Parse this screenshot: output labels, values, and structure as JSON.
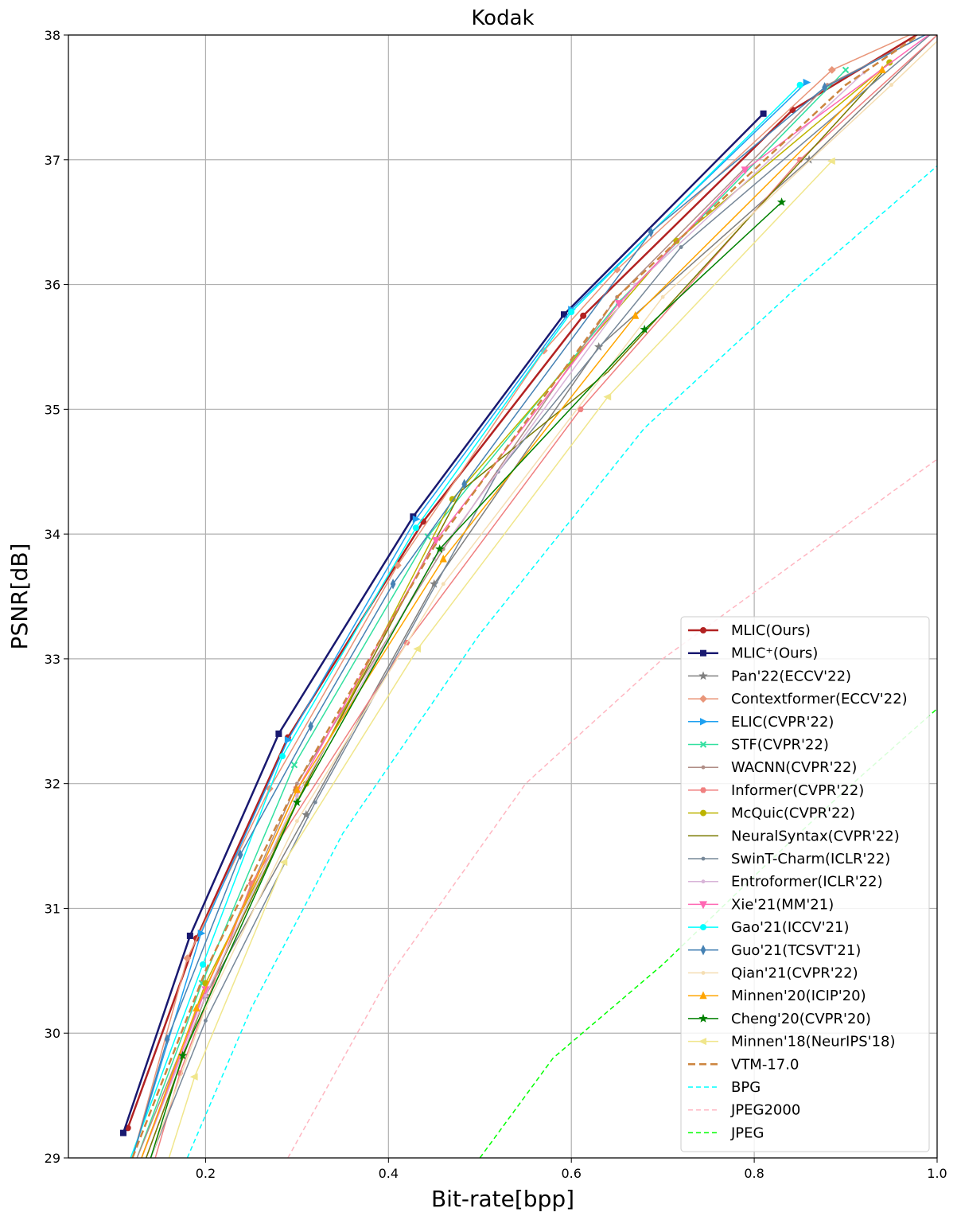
{
  "chart_data": {
    "type": "line",
    "title": "Kodak",
    "xlabel": "Bit-rate[bpp]",
    "ylabel": "PSNR[dB]",
    "xlim": [
      0.05,
      1.0
    ],
    "ylim": [
      29,
      38
    ],
    "xticks": [
      0.2,
      0.4,
      0.6,
      0.8,
      1.0
    ],
    "xtick_labels": [
      "0.2",
      "0.4",
      "0.6",
      "0.8",
      "1.0"
    ],
    "yticks": [
      29,
      30,
      31,
      32,
      33,
      34,
      35,
      36,
      37,
      38
    ],
    "ytick_labels": [
      "29",
      "30",
      "31",
      "32",
      "33",
      "34",
      "35",
      "36",
      "37",
      "38"
    ],
    "grid": true,
    "legend_position": "lower-right",
    "series": [
      {
        "name": "MLIC(Ours)",
        "color": "#b22222",
        "marker": "circle",
        "dash": "solid",
        "width": 2.5,
        "x": [
          0.115,
          0.19,
          0.29,
          0.438,
          0.613,
          0.842,
          1.0
        ],
        "y": [
          29.24,
          30.76,
          32.37,
          34.1,
          35.75,
          37.4,
          38.1
        ]
      },
      {
        "name": "MLIC⁺(Ours)",
        "color": "#191970",
        "marker": "square",
        "dash": "solid",
        "width": 2.5,
        "x": [
          0.11,
          0.183,
          0.28,
          0.427,
          0.592,
          0.81
        ],
        "y": [
          29.2,
          30.78,
          32.4,
          34.14,
          35.76,
          37.37
        ]
      },
      {
        "name": "Pan'22(ECCV'22)",
        "color": "#808080",
        "marker": "star",
        "dash": "solid",
        "width": 1.5,
        "x": [
          0.135,
          0.2,
          0.31,
          0.45,
          0.63,
          0.86,
          1.0
        ],
        "y": [
          29.0,
          30.3,
          31.75,
          33.6,
          35.5,
          37.0,
          38.0
        ]
      },
      {
        "name": "Contextformer(ECCV'22)",
        "color": "#e9967a",
        "marker": "diamond",
        "dash": "solid",
        "width": 1.5,
        "x": [
          0.12,
          0.18,
          0.27,
          0.41,
          0.57,
          0.65,
          0.885,
          1.0
        ],
        "y": [
          29.0,
          30.6,
          31.96,
          33.75,
          35.47,
          36.12,
          37.72,
          38.1
        ]
      },
      {
        "name": "ELIC(CVPR'22)",
        "color": "#1ea0f0",
        "marker": "tri-right",
        "dash": "solid",
        "width": 1.5,
        "x": [
          0.12,
          0.195,
          0.29,
          0.43,
          0.6,
          0.857
        ],
        "y": [
          29.0,
          30.8,
          32.35,
          34.12,
          35.8,
          37.62
        ]
      },
      {
        "name": "STF(CVPR'22)",
        "color": "#33e0a0",
        "marker": "x",
        "dash": "solid",
        "width": 1.5,
        "x": [
          0.125,
          0.196,
          0.297,
          0.443,
          0.652,
          0.9
        ],
        "y": [
          29.0,
          30.4,
          32.15,
          33.98,
          35.86,
          37.72
        ]
      },
      {
        "name": "WACNN(CVPR'22)",
        "color": "#b08d86",
        "marker": "dot",
        "dash": "solid",
        "width": 1.5,
        "x": [
          0.125,
          0.2,
          0.3,
          0.46,
          0.65,
          0.88,
          1.0
        ],
        "y": [
          29.0,
          30.35,
          32.0,
          33.88,
          35.9,
          37.6,
          38.05
        ]
      },
      {
        "name": "Informer(CVPR'22)",
        "color": "#f08080",
        "marker": "hex",
        "dash": "solid",
        "width": 1.5,
        "x": [
          0.145,
          0.172,
          0.25,
          0.42,
          0.61,
          0.85,
          1.0
        ],
        "y": [
          29.0,
          29.68,
          31.2,
          33.13,
          35.0,
          37.0,
          38.0
        ]
      },
      {
        "name": "McQuic(CVPR'22)",
        "color": "#bdb400",
        "marker": "circle",
        "dash": "solid",
        "width": 1.5,
        "x": [
          0.13,
          0.2,
          0.31,
          0.47,
          0.715,
          0.948
        ],
        "y": [
          29.0,
          30.4,
          32.0,
          34.28,
          36.35,
          37.78
        ]
      },
      {
        "name": "NeuralSyntax(CVPR'22)",
        "color": "#7a7a00",
        "marker": "none",
        "dash": "solid",
        "width": 1.5,
        "x": [
          0.135,
          0.2,
          0.31,
          0.48,
          0.64,
          0.94
        ],
        "y": [
          29.0,
          30.3,
          32.0,
          34.35,
          35.3,
          37.7
        ]
      },
      {
        "name": "SwinT-Charm(ICLR'22)",
        "color": "#778899",
        "marker": "dot",
        "dash": "solid",
        "width": 1.5,
        "x": [
          0.14,
          0.2,
          0.32,
          0.52,
          0.72,
          1.0
        ],
        "y": [
          29.0,
          30.1,
          31.85,
          34.5,
          36.3,
          38.05
        ]
      },
      {
        "name": "Entroformer(ICLR'22)",
        "color": "#d8b4d8",
        "marker": "dot",
        "dash": "solid",
        "width": 1.5,
        "x": [
          0.13,
          0.2,
          0.3,
          0.45,
          0.67,
          0.92
        ],
        "y": [
          29.0,
          30.3,
          31.9,
          33.8,
          36.0,
          37.7
        ]
      },
      {
        "name": "Xie'21(MM'21)",
        "color": "#ff69b4",
        "marker": "tri-down",
        "dash": "solid",
        "width": 1.5,
        "x": [
          0.13,
          0.2,
          0.3,
          0.452,
          0.652,
          0.79,
          1.0
        ],
        "y": [
          29.0,
          30.35,
          31.95,
          33.95,
          35.85,
          36.92,
          38.05
        ]
      },
      {
        "name": "Gao'21(ICCV'21)",
        "color": "#00ffff",
        "marker": "circle",
        "dash": "solid",
        "width": 1.5,
        "x": [
          0.118,
          0.197,
          0.284,
          0.43,
          0.6,
          0.85
        ],
        "y": [
          29.0,
          30.55,
          32.22,
          34.05,
          35.78,
          37.6
        ]
      },
      {
        "name": "Guo'21(TCSVT'21)",
        "color": "#4682b4",
        "marker": "thin-diamond",
        "dash": "solid",
        "width": 1.5,
        "x": [
          0.12,
          0.158,
          0.238,
          0.315,
          0.405,
          0.483,
          0.687,
          0.877,
          1.0
        ],
        "y": [
          29.0,
          29.95,
          31.43,
          32.46,
          33.6,
          34.4,
          36.42,
          37.58,
          38.05
        ]
      },
      {
        "name": "Qian'21(CVPR'22)",
        "color": "#f5deb3",
        "marker": "dot",
        "dash": "solid",
        "width": 1.5,
        "x": [
          0.14,
          0.2,
          0.3,
          0.46,
          0.7,
          0.95,
          1.0
        ],
        "y": [
          29.0,
          30.2,
          31.7,
          33.6,
          35.9,
          37.6,
          37.95
        ]
      },
      {
        "name": "Minnen'20(ICIP'20)",
        "color": "#ffa500",
        "marker": "tri-up",
        "dash": "solid",
        "width": 1.5,
        "x": [
          0.13,
          0.19,
          0.3,
          0.46,
          0.67,
          0.94
        ],
        "y": [
          29.0,
          30.2,
          31.95,
          33.8,
          35.75,
          37.72
        ]
      },
      {
        "name": "Cheng'20(CVPR'20)",
        "color": "#008000",
        "marker": "star",
        "dash": "solid",
        "width": 1.5,
        "x": [
          0.14,
          0.175,
          0.3,
          0.456,
          0.68,
          0.83
        ],
        "y": [
          29.0,
          29.82,
          31.85,
          33.88,
          35.64,
          36.66
        ]
      },
      {
        "name": "Minnen'18(NeurIPS'18)",
        "color": "#f0e68c",
        "marker": "tri-left",
        "dash": "solid",
        "width": 1.5,
        "x": [
          0.16,
          0.188,
          0.286,
          0.432,
          0.64,
          0.885
        ],
        "y": [
          29.0,
          29.65,
          31.37,
          33.08,
          35.1,
          36.99
        ]
      },
      {
        "name": "VTM-17.0",
        "color": "#cd853f",
        "marker": "none",
        "dash": "dashed",
        "width": 2.5,
        "x": [
          0.12,
          0.2,
          0.3,
          0.45,
          0.65,
          0.9,
          0.98
        ],
        "y": [
          29.0,
          30.5,
          32.0,
          33.9,
          35.9,
          37.6,
          38.0
        ]
      },
      {
        "name": "BPG",
        "color": "#00ffff",
        "marker": "none",
        "dash": "dashed",
        "width": 1.5,
        "x": [
          0.18,
          0.25,
          0.35,
          0.5,
          0.68,
          0.85,
          1.0
        ],
        "y": [
          29.0,
          30.2,
          31.6,
          33.2,
          34.85,
          36.0,
          36.95
        ]
      },
      {
        "name": "JPEG2000",
        "color": "#ffb6c1",
        "marker": "none",
        "dash": "dashed",
        "width": 1.5,
        "x": [
          0.29,
          0.4,
          0.55,
          0.7,
          0.85,
          1.0
        ],
        "y": [
          29.0,
          30.45,
          32.0,
          33.0,
          33.8,
          34.6
        ]
      },
      {
        "name": "JPEG",
        "color": "#00ff00",
        "marker": "none",
        "dash": "dashed",
        "width": 1.5,
        "x": [
          0.5,
          0.58,
          0.7,
          0.82,
          0.9,
          1.0
        ],
        "y": [
          29.0,
          29.8,
          30.55,
          31.4,
          31.95,
          32.6
        ]
      }
    ]
  }
}
